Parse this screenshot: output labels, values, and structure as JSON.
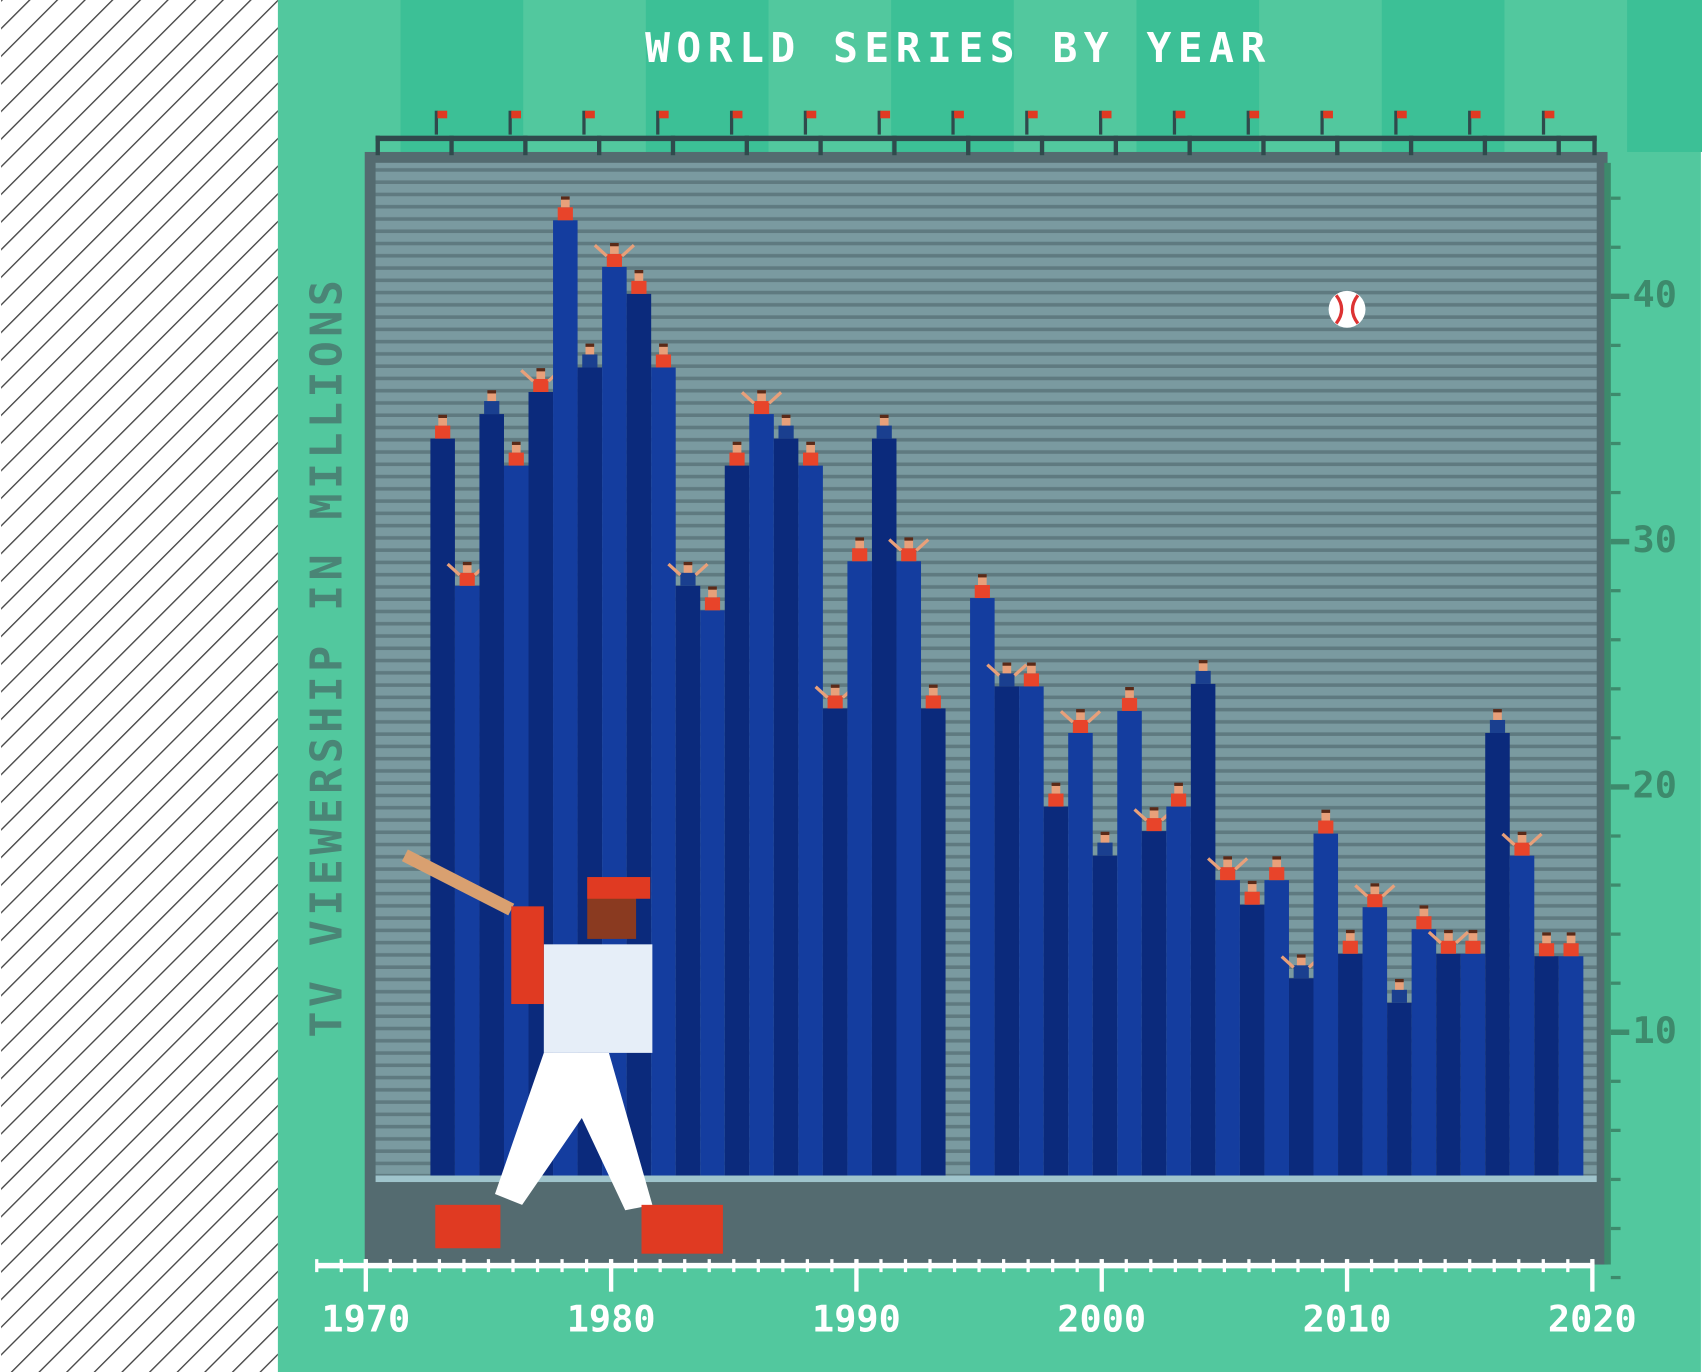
{
  "chart_data": {
    "type": "bar",
    "title": "WORLD SERIES BY YEAR",
    "y_label": "TV VIEWERSHIP IN MILLIONS",
    "x": [
      1973,
      1974,
      1975,
      1976,
      1977,
      1978,
      1979,
      1980,
      1981,
      1982,
      1983,
      1984,
      1985,
      1986,
      1987,
      1988,
      1989,
      1990,
      1991,
      1992,
      1993,
      1995,
      1996,
      1997,
      1998,
      1999,
      2000,
      2001,
      2002,
      2003,
      2004,
      2005,
      2006,
      2007,
      2008,
      2009,
      2010,
      2011,
      2012,
      2013,
      2014,
      2015,
      2016,
      2017,
      2018,
      2019
    ],
    "values": [
      34.2,
      28.2,
      35.2,
      33.1,
      36.1,
      43.1,
      37.1,
      41.2,
      40.1,
      37.1,
      28.2,
      27.2,
      33.1,
      35.2,
      34.2,
      33.1,
      23.2,
      29.2,
      34.2,
      29.2,
      23.2,
      27.7,
      24.1,
      24.1,
      19.2,
      22.2,
      17.2,
      23.1,
      18.2,
      19.2,
      24.2,
      16.2,
      15.2,
      16.2,
      12.2,
      18.1,
      13.2,
      15.1,
      11.2,
      14.2,
      13.2,
      13.2,
      22.2,
      17.2,
      13.1,
      13.1
    ],
    "colors": [
      "#0b2a7c",
      "#143d9f"
    ],
    "xlim": [
      1970,
      2020
    ],
    "xticks": [
      1970,
      1980,
      1990,
      2000,
      2010,
      2020
    ],
    "ylim": [
      0,
      45
    ],
    "yticks": [
      10,
      20,
      30,
      40
    ],
    "grid": false
  }
}
